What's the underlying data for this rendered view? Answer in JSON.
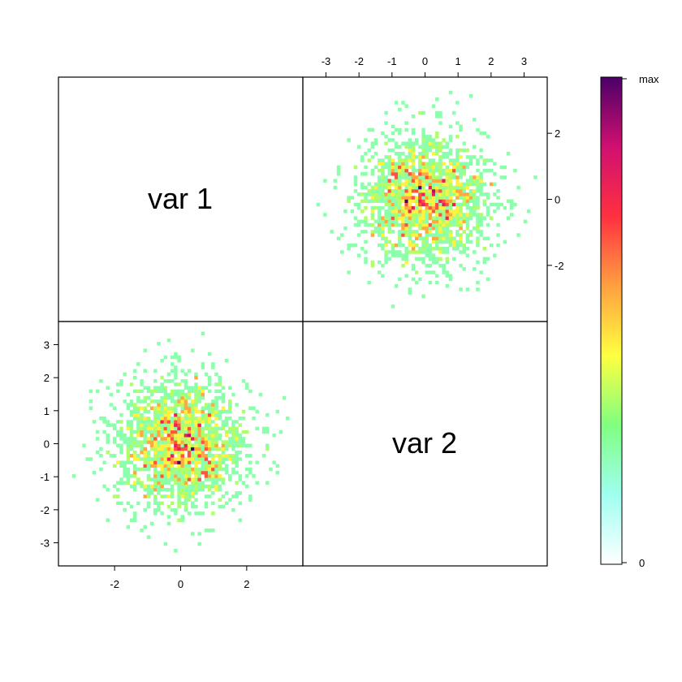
{
  "chart_data": {
    "type": "heatmap",
    "panels": [
      {
        "id": "var1",
        "label": "var 1"
      },
      {
        "id": "var2",
        "label": "var 2"
      }
    ],
    "top_axis": {
      "ticks": [
        -3,
        -2,
        -1,
        0,
        1,
        2,
        3
      ],
      "range": [
        -3.7,
        3.7
      ]
    },
    "right_axis": {
      "ticks": [
        2,
        0,
        -2
      ],
      "range": [
        -3.7,
        3.7
      ]
    },
    "bottom_axis": {
      "ticks": [
        -2,
        0,
        2
      ],
      "range": [
        -3.7,
        3.7
      ]
    },
    "left_axis": {
      "ticks": [
        3,
        2,
        1,
        0,
        -1,
        -2,
        -3
      ],
      "range": [
        -3.7,
        3.7
      ]
    },
    "colorbar": {
      "min_label": "0",
      "max_label": "max",
      "colors": [
        "#ffffff",
        "#9ffff0",
        "#80ff80",
        "#ffff40",
        "#ffa040",
        "#ff3040",
        "#d01070",
        "#4b0068"
      ]
    },
    "bins": 72,
    "samples": 2000,
    "distribution": "bivariate standard normal"
  }
}
